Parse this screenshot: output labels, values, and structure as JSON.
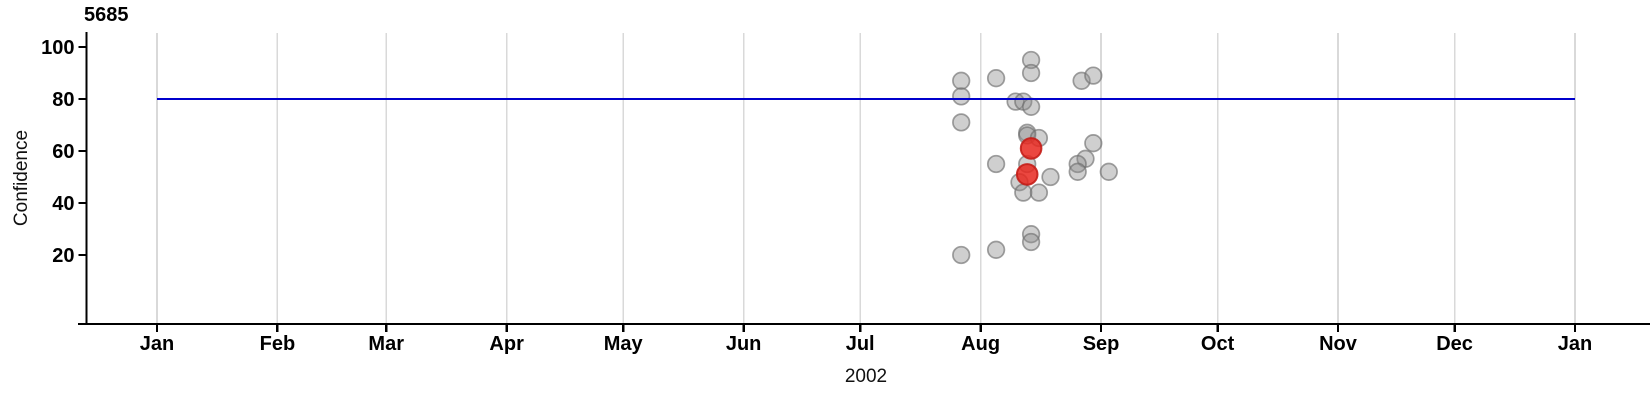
{
  "chart_data": {
    "type": "scatter",
    "title": "5685",
    "xlabel": "2002",
    "ylabel": "Confidence",
    "x_axis": {
      "start_date": "2002-01-01",
      "end_date": "2003-01-01",
      "tick_dates": [
        "2002-01-01",
        "2002-02-01",
        "2002-03-01",
        "2002-04-01",
        "2002-05-01",
        "2002-06-01",
        "2002-07-01",
        "2002-08-01",
        "2002-09-01",
        "2002-10-01",
        "2002-11-01",
        "2002-12-01",
        "2003-01-01"
      ],
      "tick_labels": [
        "Jan",
        "Feb",
        "Mar",
        "Apr",
        "May",
        "Jun",
        "Jul",
        "Aug",
        "Sep",
        "Oct",
        "Nov",
        "Dec",
        "Jan"
      ]
    },
    "y_axis": {
      "ticks": [
        20,
        40,
        60,
        80,
        100
      ],
      "range": [
        -6,
        106
      ]
    },
    "grid": {
      "vertical": true,
      "color": "#D9D9D9"
    },
    "reference_line": {
      "value": 80,
      "color": "#0000CC"
    },
    "series": [
      {
        "name": "observations",
        "marker": "circle",
        "fill": "#8C8C8C",
        "fill_opacity": 0.42,
        "stroke": "#6E6E6E",
        "stroke_opacity": 0.65,
        "radius": 8.3,
        "points": [
          {
            "date": "2002-07-27",
            "confidence": 87
          },
          {
            "date": "2002-07-27",
            "confidence": 81
          },
          {
            "date": "2002-07-27",
            "confidence": 71
          },
          {
            "date": "2002-07-27",
            "confidence": 20
          },
          {
            "date": "2002-08-05",
            "confidence": 88
          },
          {
            "date": "2002-08-05",
            "confidence": 55
          },
          {
            "date": "2002-08-05",
            "confidence": 22
          },
          {
            "date": "2002-08-10",
            "confidence": 79
          },
          {
            "date": "2002-08-12",
            "confidence": 79
          },
          {
            "date": "2002-08-14",
            "confidence": 77
          },
          {
            "date": "2002-08-14",
            "confidence": 95
          },
          {
            "date": "2002-08-14",
            "confidence": 90
          },
          {
            "date": "2002-08-13",
            "confidence": 67
          },
          {
            "date": "2002-08-13",
            "confidence": 66
          },
          {
            "date": "2002-08-16",
            "confidence": 65
          },
          {
            "date": "2002-08-13",
            "confidence": 55
          },
          {
            "date": "2002-08-11",
            "confidence": 48
          },
          {
            "date": "2002-08-19",
            "confidence": 50
          },
          {
            "date": "2002-08-12",
            "confidence": 44
          },
          {
            "date": "2002-08-16",
            "confidence": 44
          },
          {
            "date": "2002-08-14",
            "confidence": 28
          },
          {
            "date": "2002-08-14",
            "confidence": 25
          },
          {
            "date": "2002-08-27",
            "confidence": 87
          },
          {
            "date": "2002-08-30",
            "confidence": 89
          },
          {
            "date": "2002-08-30",
            "confidence": 63
          },
          {
            "date": "2002-08-28",
            "confidence": 57
          },
          {
            "date": "2002-08-26",
            "confidence": 55
          },
          {
            "date": "2002-08-26",
            "confidence": 52
          },
          {
            "date": "2002-09-03",
            "confidence": 52
          }
        ]
      },
      {
        "name": "highlighted",
        "marker": "circle",
        "fill": "#E8271E",
        "fill_opacity": 0.85,
        "stroke": "#C41E18",
        "stroke_opacity": 0.9,
        "radius": 10.3,
        "points": [
          {
            "date": "2002-08-14",
            "confidence": 61
          },
          {
            "date": "2002-08-13",
            "confidence": 51
          }
        ]
      }
    ]
  }
}
